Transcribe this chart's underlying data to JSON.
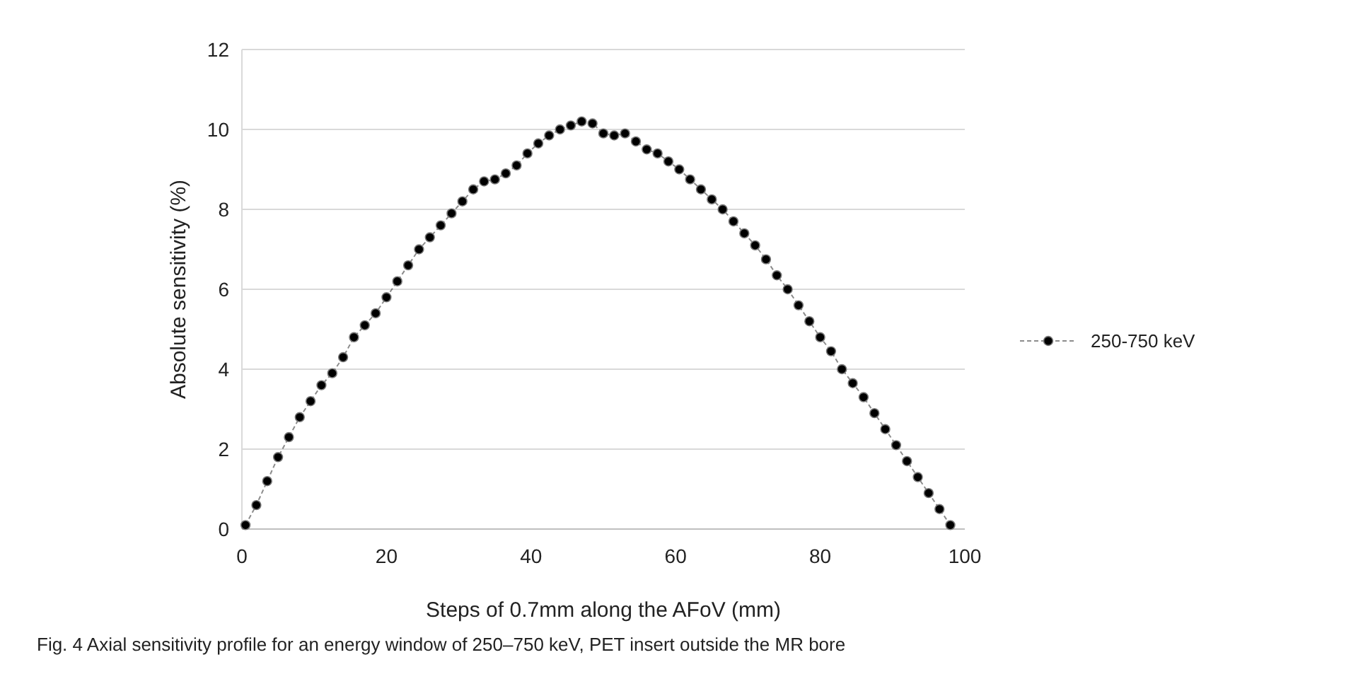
{
  "chart_data": {
    "type": "line",
    "xlabel": "Steps of 0.7mm along the AFoV (mm)",
    "ylabel": "Absolute sensitivity (%)",
    "annotations": [
      "Fig. 4  Axial sensitivity profile for an energy window of 250–750 keV, PET insert outside the MR bore"
    ],
    "x": [
      0.5,
      2,
      3.5,
      5,
      6.5,
      8,
      9.5,
      11,
      12.5,
      14,
      15.5,
      17,
      18.5,
      20,
      21.5,
      23,
      24.5,
      26,
      27.5,
      29,
      30.5,
      32,
      33.5,
      35,
      36.5,
      38,
      39.5,
      41,
      42.5,
      44,
      45.5,
      47,
      48.5,
      50,
      51.5,
      53,
      54.5,
      56,
      57.5,
      59,
      60.5,
      62,
      63.5,
      65,
      66.5,
      68,
      69.5,
      71,
      72.5,
      74,
      75.5,
      77,
      78.5,
      80,
      81.5,
      83,
      84.5,
      86,
      87.5,
      89,
      90.5,
      92,
      93.5,
      95,
      96.5,
      98
    ],
    "series": [
      {
        "name": "250-750 keV",
        "color": "#000000",
        "values": [
          0.1,
          0.6,
          1.2,
          1.8,
          2.3,
          2.8,
          3.2,
          3.6,
          3.9,
          4.3,
          4.8,
          5.1,
          5.4,
          5.8,
          6.2,
          6.6,
          7.0,
          7.3,
          7.6,
          7.9,
          8.2,
          8.5,
          8.7,
          8.75,
          8.9,
          9.1,
          9.4,
          9.65,
          9.85,
          10.0,
          10.1,
          10.2,
          10.15,
          9.9,
          9.85,
          9.9,
          9.7,
          9.5,
          9.4,
          9.2,
          9.0,
          8.75,
          8.5,
          8.25,
          8.0,
          7.7,
          7.4,
          7.1,
          6.75,
          6.35,
          6.0,
          5.6,
          5.2,
          4.8,
          4.45,
          4.0,
          3.65,
          3.3,
          2.9,
          2.5,
          2.1,
          1.7,
          1.3,
          0.9,
          0.5,
          0.1
        ]
      }
    ],
    "xlim": [
      0,
      100
    ],
    "xticks": [
      0,
      20,
      40,
      60,
      80,
      100
    ],
    "ylim": [
      0,
      12
    ],
    "yticks": [
      0,
      2,
      4,
      6,
      8,
      10,
      12
    ],
    "grid": "y",
    "legend": "right",
    "marker": "circle",
    "line_style": "dashed"
  }
}
